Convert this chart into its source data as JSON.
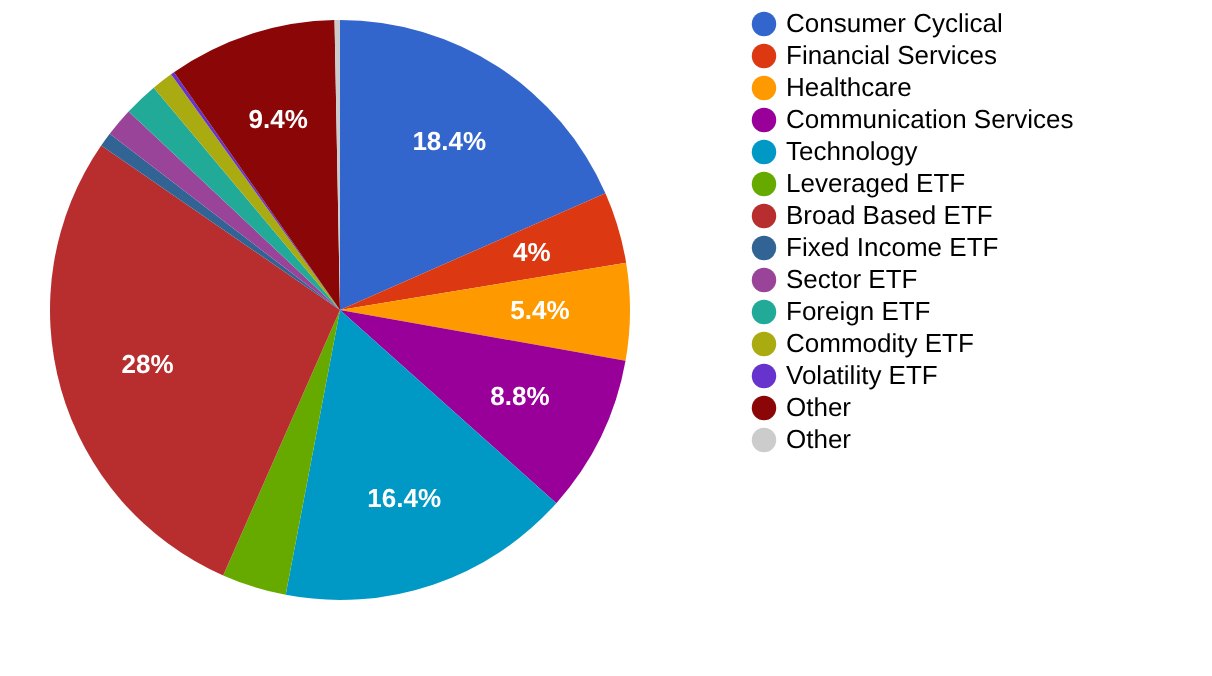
{
  "chart_data": {
    "type": "pie",
    "categories": [
      "Consumer Cyclical",
      "Financial Services",
      "Healthcare",
      "Communication Services",
      "Technology",
      "Leveraged ETF",
      "Broad Based ETF",
      "Fixed Income ETF",
      "Sector ETF",
      "Foreign ETF",
      "Commodity ETF",
      "Volatility ETF",
      "Other",
      "Other"
    ],
    "values": [
      18.4,
      4,
      5.4,
      8.8,
      16.4,
      3.6,
      28,
      0.8,
      1.6,
      1.9,
      1.2,
      0.2,
      9.4,
      0.3
    ],
    "colors": [
      "#3366cc",
      "#dc3912",
      "#ff9900",
      "#990099",
      "#0099c6",
      "#66aa00",
      "#b82e2e",
      "#316395",
      "#994499",
      "#22aa99",
      "#aaaa11",
      "#6633cc",
      "#8b0707",
      "#cccccc"
    ],
    "value_labels": [
      "18.4%",
      "4%",
      "5.4%",
      "8.8%",
      "16.4%",
      null,
      "28%",
      null,
      null,
      null,
      null,
      null,
      "9.4%",
      null
    ],
    "legend": "right"
  }
}
